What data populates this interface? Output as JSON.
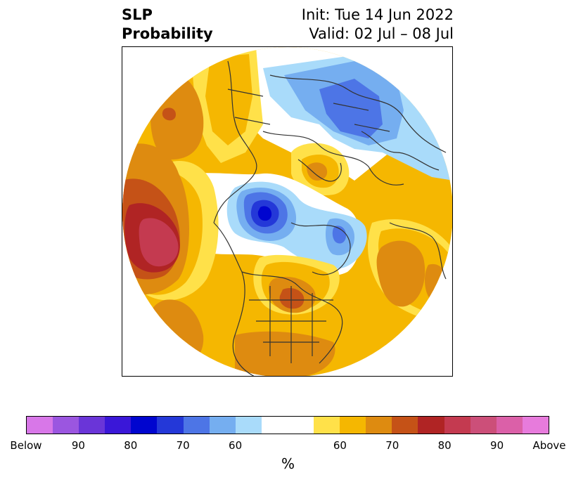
{
  "title": {
    "left_line1": "SLP",
    "left_line2": "Probability",
    "right_line1": "Init: Tue 14 Jun 2022",
    "right_line2": "Valid: 02 Jul – 08 Jul"
  },
  "colorbar": {
    "colors": [
      "#d877e8",
      "#9b56e0",
      "#6a35d8",
      "#3a17d8",
      "#0005cf",
      "#2438d8",
      "#4d75e6",
      "#75aef0",
      "#a9dbfa",
      "#ffffff",
      "#ffffff",
      "#ffe149",
      "#f5b701",
      "#de8b10",
      "#c55217",
      "#b02424",
      "#c43a50",
      "#cc4f79",
      "#db60a8",
      "#e77bdc"
    ],
    "labels": [
      "Below",
      "90",
      "80",
      "70",
      "60",
      "60",
      "70",
      "80",
      "90",
      "Above"
    ],
    "unit": "%"
  },
  "map": {
    "palette": {
      "land_line": "#333333",
      "blue_light": "#a9dbfa",
      "blue_mid": "#75aef0",
      "blue": "#4d75e6",
      "blue_dark": "#2438d8",
      "blue_deep": "#0005cf",
      "yellow": "#ffe149",
      "gold": "#f5b701",
      "orange": "#de8b10",
      "rust": "#c55217",
      "red": "#b02424",
      "rose": "#c43a50"
    }
  }
}
